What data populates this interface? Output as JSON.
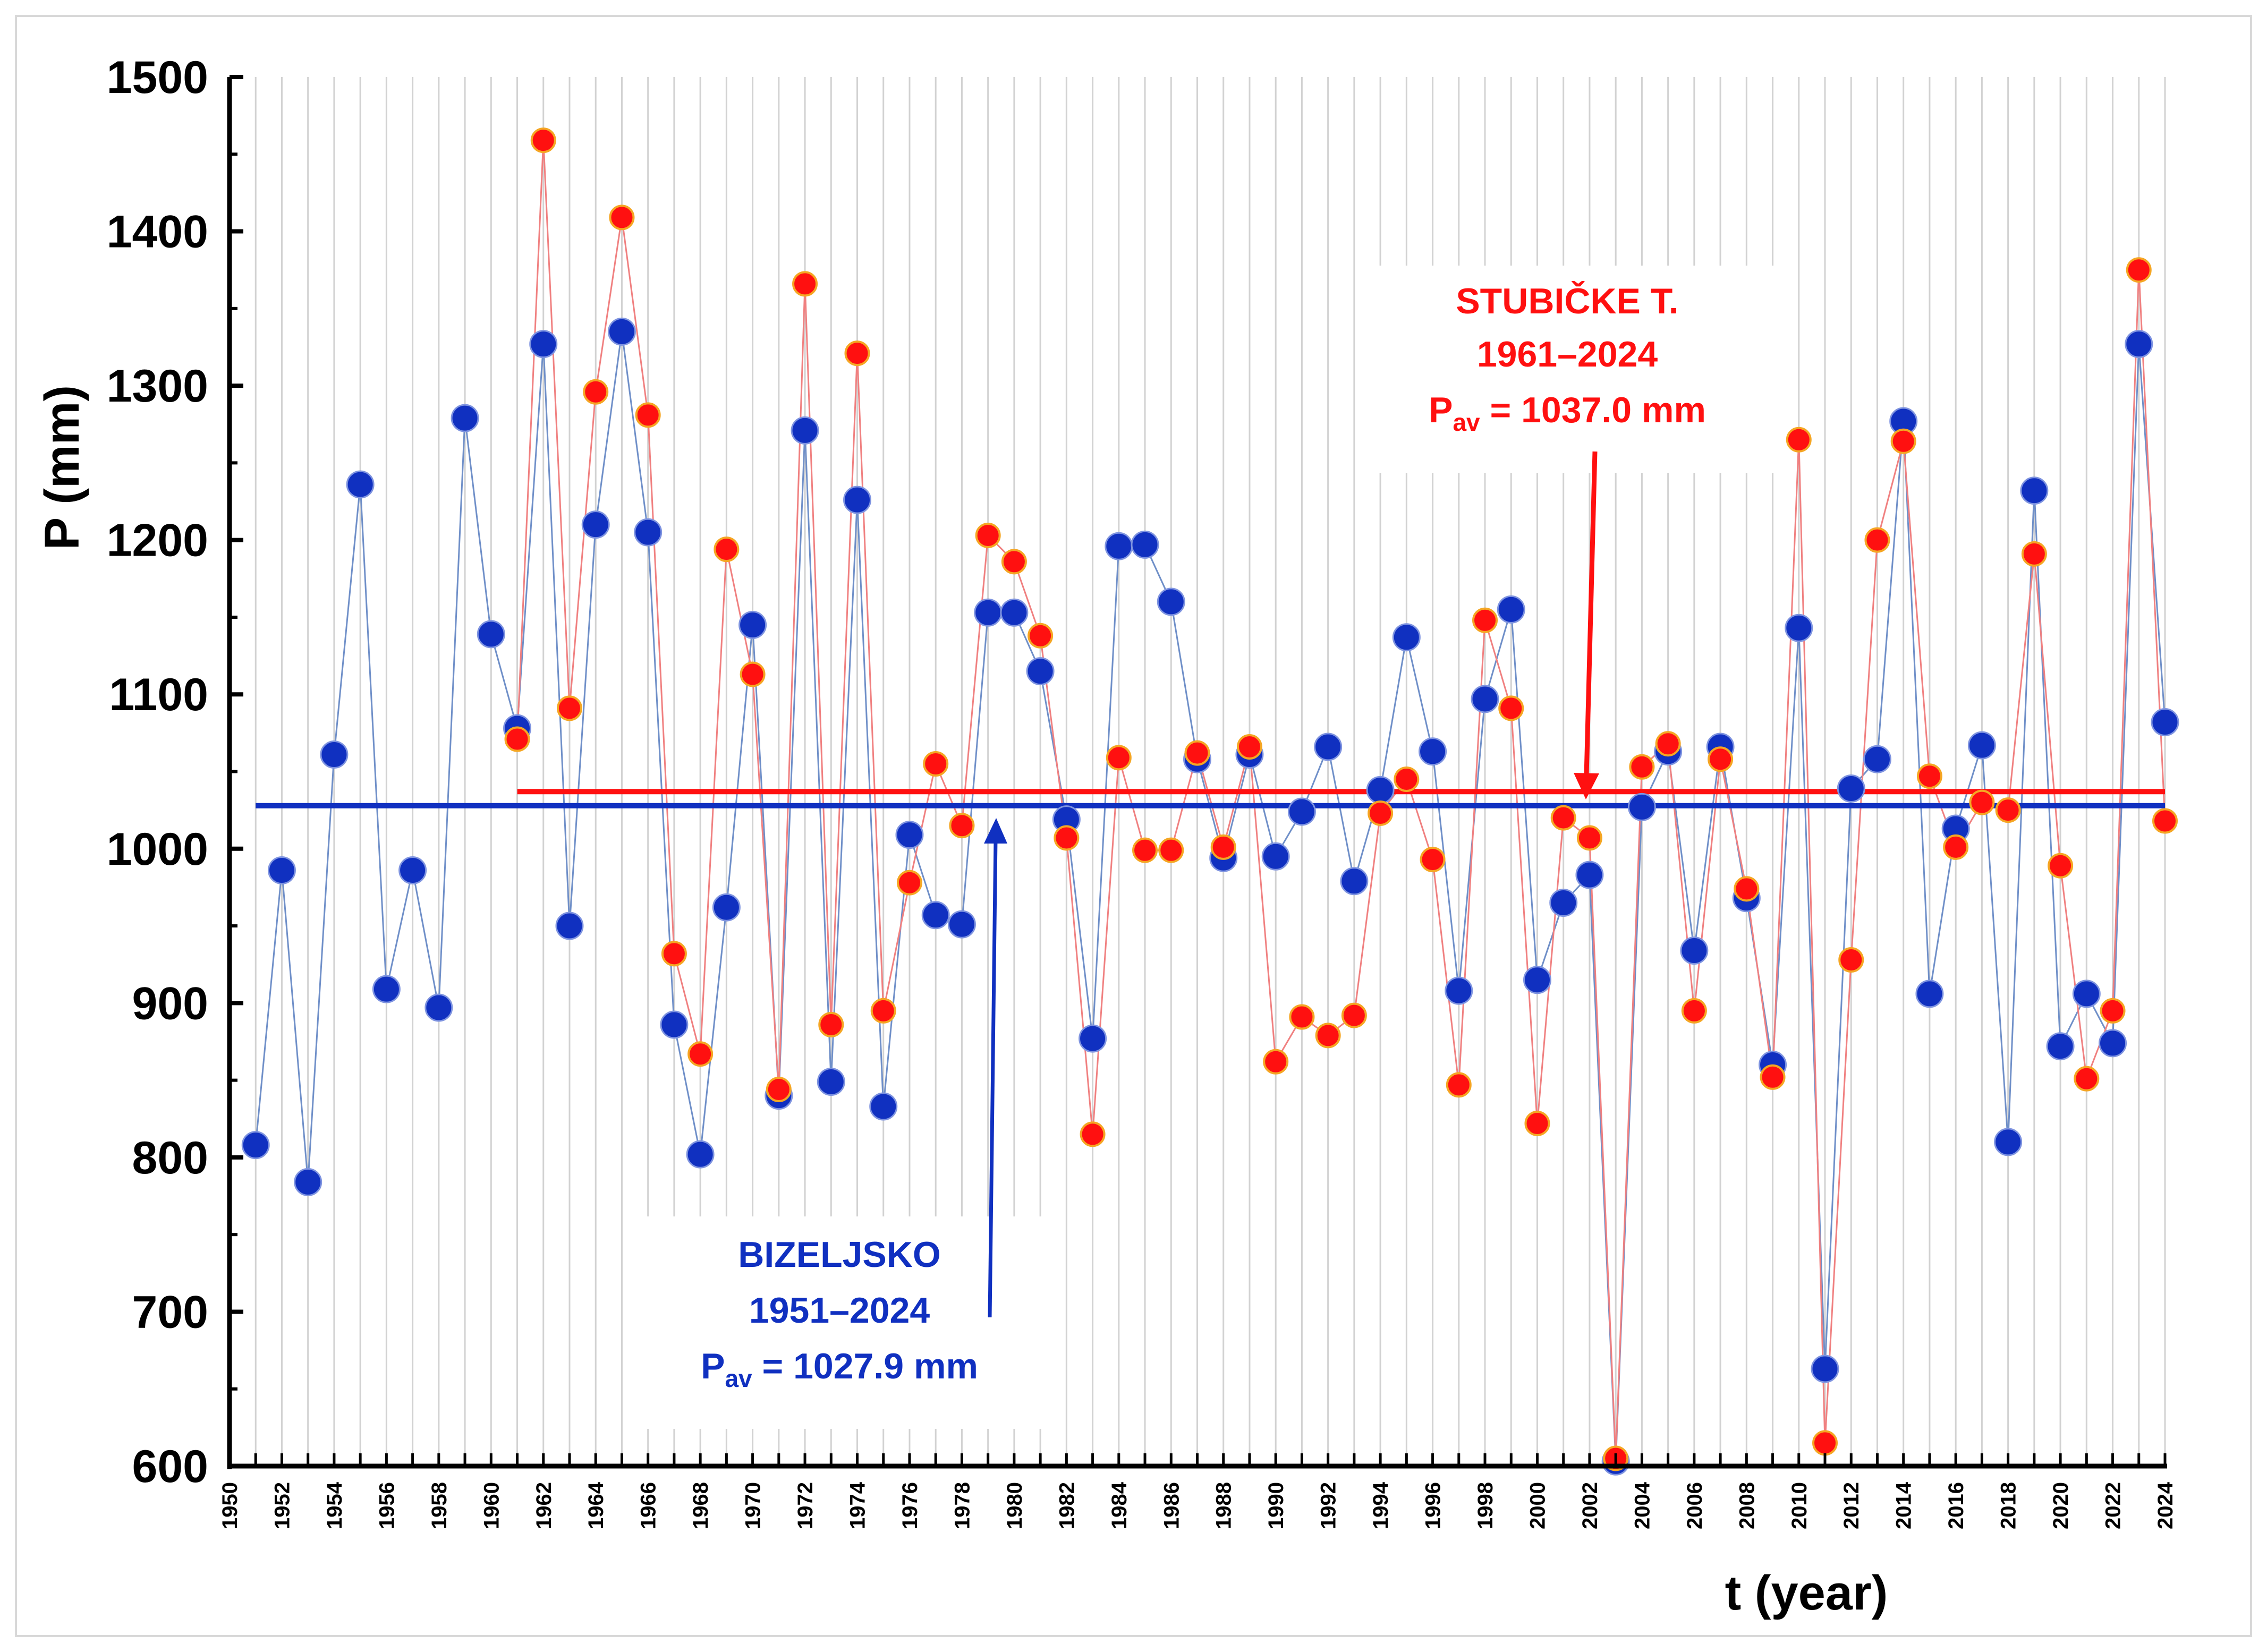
{
  "chart_data": {
    "type": "line",
    "title": "",
    "xlabel": "t (year)",
    "ylabel": "P (mm)",
    "xlim": [
      1950,
      2024
    ],
    "ylim": [
      600,
      1500
    ],
    "yticks": [
      "600",
      "700",
      "800",
      "900",
      "1000",
      "1100",
      "1200",
      "1300",
      "1400",
      "1500"
    ],
    "xticks": [
      "1950",
      "1952",
      "1954",
      "1956",
      "1958",
      "1960",
      "1962",
      "1964",
      "1966",
      "1968",
      "1970",
      "1972",
      "1974",
      "1976",
      "1978",
      "1980",
      "1982",
      "1984",
      "1986",
      "1988",
      "1990",
      "1992",
      "1994",
      "1996",
      "1998",
      "2000",
      "2002",
      "2004",
      "2006",
      "2008",
      "2010",
      "2012",
      "2014",
      "2016",
      "2018",
      "2020",
      "2022",
      "2024"
    ],
    "grid": true,
    "series": [
      {
        "name": "BIZELJSKO",
        "color": "#1030c0",
        "line_color": "#6f8fc8",
        "x": [
          1951,
          1952,
          1953,
          1954,
          1955,
          1956,
          1957,
          1958,
          1959,
          1960,
          1961,
          1962,
          1963,
          1964,
          1965,
          1966,
          1967,
          1968,
          1969,
          1970,
          1971,
          1972,
          1973,
          1974,
          1975,
          1976,
          1977,
          1978,
          1979,
          1980,
          1981,
          1982,
          1983,
          1984,
          1985,
          1986,
          1987,
          1988,
          1989,
          1990,
          1991,
          1992,
          1993,
          1994,
          1995,
          1996,
          1997,
          1998,
          1999,
          2000,
          2001,
          2002,
          2003,
          2004,
          2005,
          2006,
          2007,
          2008,
          2009,
          2010,
          2011,
          2012,
          2013,
          2014,
          2015,
          2016,
          2017,
          2018,
          2019,
          2020,
          2021,
          2022,
          2023,
          2024
        ],
        "values": [
          808,
          986,
          784,
          1061,
          1236,
          909,
          986,
          897,
          1279,
          1139,
          1078,
          1327,
          950,
          1210,
          1335,
          1205,
          886,
          802,
          962,
          1145,
          840,
          1271,
          849,
          1226,
          833,
          1009,
          957,
          951,
          1153,
          1153,
          1115,
          1019,
          877,
          1196,
          1197,
          1160,
          1058,
          994,
          1061,
          995,
          1024,
          1066,
          979,
          1038,
          1137,
          1063,
          908,
          1097,
          1155,
          915,
          965,
          983,
          603,
          1027,
          1063,
          934,
          1066,
          968,
          860,
          1143,
          663,
          1039,
          1058,
          1277,
          906,
          1013,
          1067,
          810,
          1232,
          872,
          906,
          874,
          1327,
          1082
        ],
        "average": 1027.9,
        "avg_from": 1951,
        "avg_to": 2024
      },
      {
        "name": "STUBIČKE T.",
        "color": "#ff1010",
        "line_color": "#f08080",
        "x": [
          1961,
          1962,
          1963,
          1964,
          1965,
          1966,
          1967,
          1968,
          1969,
          1970,
          1971,
          1972,
          1973,
          1974,
          1975,
          1976,
          1977,
          1978,
          1979,
          1980,
          1981,
          1982,
          1983,
          1984,
          1985,
          1986,
          1987,
          1988,
          1989,
          1990,
          1991,
          1992,
          1993,
          1994,
          1995,
          1996,
          1997,
          1998,
          1999,
          2000,
          2001,
          2002,
          2003,
          2004,
          2005,
          2006,
          2007,
          2008,
          2009,
          2010,
          2011,
          2012,
          2013,
          2014,
          2015,
          2016,
          2017,
          2018,
          2019,
          2020,
          2021,
          2022,
          2023,
          2024
        ],
        "values": [
          1071,
          1459,
          1091,
          1296,
          1409,
          1281,
          932,
          867,
          1194,
          1113,
          844,
          1366,
          886,
          1321,
          895,
          978,
          1055,
          1015,
          1203,
          1186,
          1138,
          1007,
          815,
          1059,
          999,
          999,
          1062,
          1001,
          1066,
          862,
          891,
          879,
          892,
          1023,
          1045,
          993,
          847,
          1148,
          1091,
          822,
          1020,
          1007,
          605,
          1053,
          1068,
          895,
          1058,
          974,
          852,
          1265,
          615,
          928,
          1200,
          1264,
          1047,
          1001,
          1030,
          1025,
          1191,
          989,
          851,
          895,
          1375,
          1018
        ],
        "average": 1037.0,
        "avg_from": 1961,
        "avg_to": 2024
      }
    ],
    "annotations": {
      "stubicke": {
        "name": "STUBIČKE T.",
        "period": "1961–2024",
        "pav_prefix": "P",
        "pav_sub": "av",
        "pav_value": " = 1037.0 mm",
        "color": "#ff1010"
      },
      "bizeljsko": {
        "name": "BIZELJSKO",
        "period": "1951–2024",
        "pav_prefix": "P",
        "pav_sub": "av",
        "pav_value": " = 1027.9 mm",
        "color": "#1030c0"
      }
    }
  }
}
